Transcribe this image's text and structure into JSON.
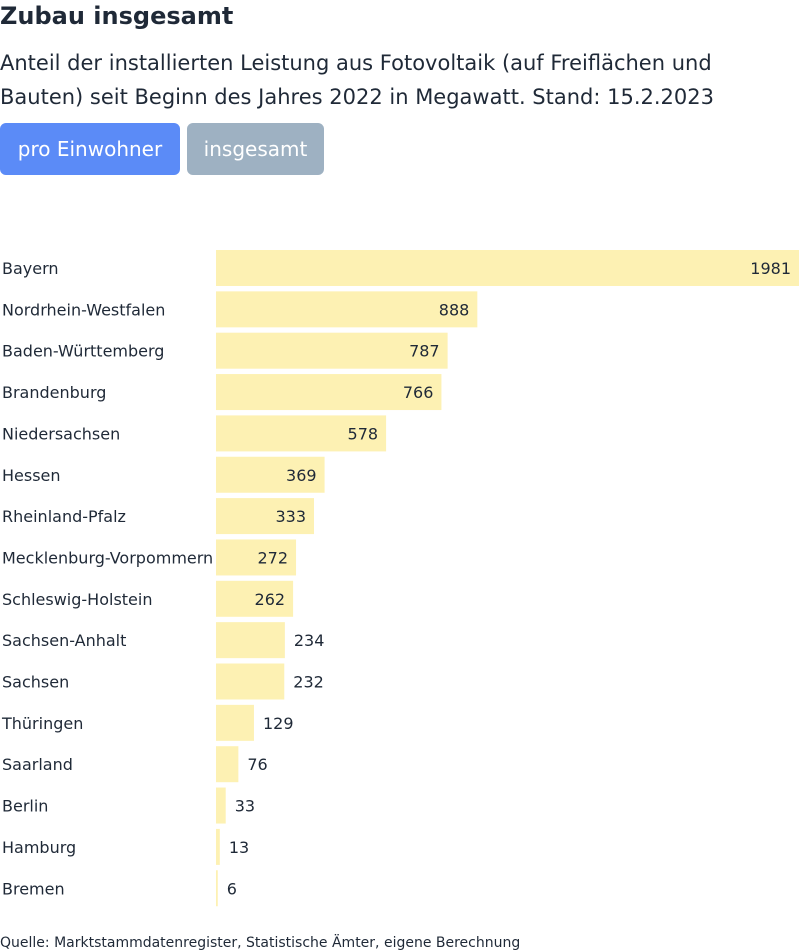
{
  "header": {
    "title": "Zubau insgesamt",
    "subtitle": "Anteil der installierten Leistung aus Fotovoltaik (auf Freiflächen und Bauten) seit Beginn des Jahres 2022 in Megawatt. Stand: 15.2.2023"
  },
  "toggle": {
    "per_capita_label": "pro Einwohner",
    "total_label": "insgesamt",
    "active": "pro Einwohner"
  },
  "colors": {
    "bar": "#fdf1b3",
    "active_button": "#5b8bf7",
    "inactive_button": "#9eb1c2",
    "text": "#1f2937"
  },
  "chart_data": {
    "type": "bar",
    "orientation": "horizontal",
    "categories": [
      "Bayern",
      "Nordrhein-Westfalen",
      "Baden-Württemberg",
      "Brandenburg",
      "Niedersachsen",
      "Hessen",
      "Rheinland-Pfalz",
      "Mecklenburg-Vorpommern",
      "Schleswig-Holstein",
      "Sachsen-Anhalt",
      "Sachsen",
      "Thüringen",
      "Saarland",
      "Berlin",
      "Hamburg",
      "Bremen"
    ],
    "values": [
      1981,
      888,
      787,
      766,
      578,
      369,
      333,
      272,
      262,
      234,
      232,
      129,
      76,
      33,
      13,
      6
    ],
    "xlim": [
      0,
      1981
    ],
    "grid": false,
    "legend": "none",
    "data_labels": true
  },
  "footer": {
    "source": "Quelle: Marktstammdatenregister, Statistische Ämter, eigene Berechnung"
  }
}
